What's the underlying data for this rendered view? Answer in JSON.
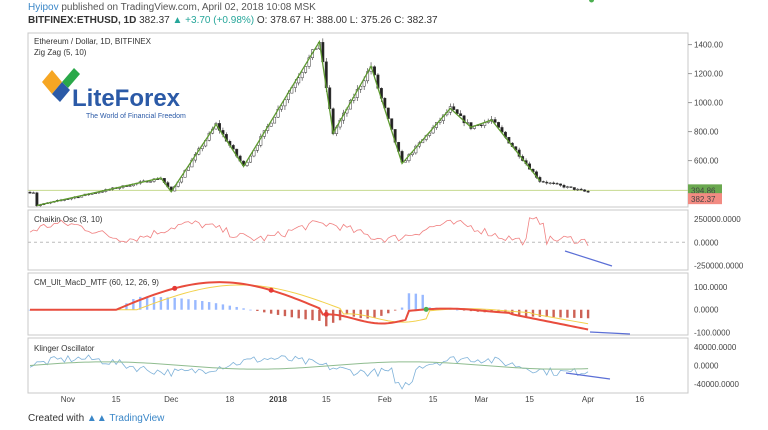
{
  "header": {
    "user": "Hyipov",
    "published": "published on TradingView.com, April 02, 2018 10:08 MSK"
  },
  "symbol_line": {
    "symbol": "BITFINEX:ETHUSD, 1D",
    "last": "382.37",
    "change": "▲ +3.70 (+0.98%)",
    "ohlc": "O: 378.67 H: 388.00 L: 375.26 C: 382.37"
  },
  "footer": {
    "created_with": "Created with",
    "brand": "TradingView"
  },
  "logo": {
    "text": "LiteForex",
    "tagline": "The World of Financial Freedom",
    "colors": [
      "#f6a623",
      "#2aa84a",
      "#2b5aa7"
    ]
  },
  "colors": {
    "up": "#ffffff",
    "down": "#222222",
    "zigzag": "#5d9a2f",
    "chaikin": "#f08080",
    "klinger": "#7fb2d9",
    "klinger_signal": "#8fbc8f",
    "annotation": "#5b6fd6"
  },
  "chart_data": [
    {
      "type": "candlestick",
      "title": "Ethereum / Dollar, 1D, BITFINEX",
      "indicator": "Zig Zag (5, 10)",
      "x_ticks": [
        "Nov",
        "15",
        "Dec",
        "18",
        "2018",
        "15",
        "Feb",
        "15",
        "Mar",
        "15",
        "Apr",
        "16"
      ],
      "ylim": [
        280,
        1480
      ],
      "y_ticks": [
        "1400.00",
        "1200.00",
        "1000.00",
        "800.00",
        "600.00"
      ],
      "price_labels": {
        "current": "394.86",
        "close": "382.37"
      },
      "zigzag": [
        {
          "x": "Oct 23",
          "y": 290
        },
        {
          "x": "Nov 28",
          "y": 480
        },
        {
          "x": "Dec 01",
          "y": 385
        },
        {
          "x": "Dec 14",
          "y": 850
        },
        {
          "x": "Dec 22",
          "y": 560
        },
        {
          "x": "Jan 13",
          "y": 1420
        },
        {
          "x": "Jan 17",
          "y": 790
        },
        {
          "x": "Jan 28",
          "y": 1250
        },
        {
          "x": "Feb 06",
          "y": 580
        },
        {
          "x": "Feb 20",
          "y": 960
        },
        {
          "x": "Feb 26",
          "y": 830
        },
        {
          "x": "Mar 04",
          "y": 880
        },
        {
          "x": "Mar 18",
          "y": 460
        }
      ]
    },
    {
      "type": "line",
      "title": "Chaikin Osc (3, 10)",
      "ylim": [
        -300000,
        350000
      ],
      "y_ticks": [
        "250000.0000",
        "0.0000",
        "-250000.0000"
      ]
    },
    {
      "type": "line",
      "title": "CM_Ult_MacD_MTF (60, 12, 26, 9)",
      "ylim": [
        -110,
        160
      ],
      "y_ticks": [
        "100.0000",
        "0.0000",
        "-100.0000"
      ]
    },
    {
      "type": "line",
      "title": "Klinger Oscillator",
      "ylim": [
        -60000,
        60000
      ],
      "y_ticks": [
        "40000.0000",
        "0.0000",
        "-40000.0000"
      ]
    }
  ]
}
